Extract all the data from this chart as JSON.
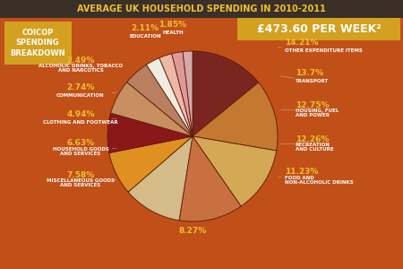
{
  "title": "AVERAGE UK HOUSEHOLD SPENDING IN 2010-2011",
  "subtitle": "£473.60 PER WEEK²",
  "left_label": "COICOP\nSPENDING\nBREAKDOWN",
  "segments": [
    {
      "label": "OTHER EXPENDITURE ITEMS",
      "pct": 14.21,
      "color": "#7B2520",
      "side": "right"
    },
    {
      "label": "TRANSPORT",
      "pct": 13.7,
      "color": "#C47830",
      "side": "right"
    },
    {
      "label": "HOUSING, FUEL\nAND POWER",
      "pct": 12.75,
      "color": "#D4A855",
      "side": "right"
    },
    {
      "label": "RECREATION\nAND CULTURE",
      "pct": 12.26,
      "color": "#C87040",
      "side": "right"
    },
    {
      "label": "FOOD AND\nNON-ALCOHOLIC DRINKS",
      "pct": 11.23,
      "color": "#D4BB88",
      "side": "right"
    },
    {
      "label": "8.27%",
      "pct": 8.27,
      "color": "#E09020",
      "side": "bottom"
    },
    {
      "label": "MISCELLANEOUS GOODS\nAND SERVICES",
      "pct": 7.58,
      "color": "#8B1818",
      "side": "left"
    },
    {
      "label": "HOUSEHOLD GOODS\nAND SERVICES",
      "pct": 6.63,
      "color": "#C89060",
      "side": "left"
    },
    {
      "label": "CLOTHING AND FOOTWEAR",
      "pct": 4.94,
      "color": "#B88060",
      "side": "left"
    },
    {
      "label": "COMMUNICATION",
      "pct": 2.74,
      "color": "#F0EDE0",
      "side": "left"
    },
    {
      "label": "ALCOHOLIC DRINKS, TOBACCO\nAND NARCOTICS",
      "pct": 2.49,
      "color": "#EEB8A8",
      "side": "left"
    },
    {
      "label": "EDUCATION",
      "pct": 2.11,
      "color": "#E09898",
      "side": "top"
    },
    {
      "label": "HEALTH",
      "pct": 1.85,
      "color": "#D4AAAA",
      "side": "top"
    }
  ],
  "bg_color": "#C05018",
  "title_bg": "#3A3028",
  "subtitle_bg": "#D4A020",
  "coicop_bg": "#D4A020",
  "pie_edge_color": "#5A1A08",
  "pct_color": "#F0C030",
  "label_color": "#FFFFFF"
}
